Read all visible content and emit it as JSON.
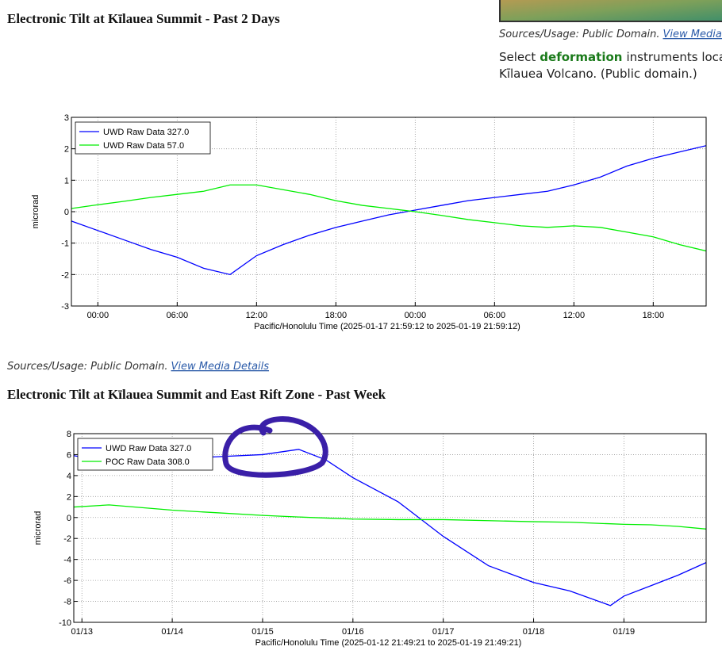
{
  "heading_1": "Electronic Tilt at Kīlauea Summit - Past 2 Days",
  "side_sources": "Sources/Usage: Public Domain.",
  "side_link": "View Media D",
  "side_text_1": "Select",
  "side_keyword": "deformation",
  "side_text_2": "instruments locate",
  "side_text_3": "Kīlauea Volcano. (Public domain.)",
  "chart_sources": "Sources/Usage: Public Domain.",
  "chart_link": "View Media Details",
  "heading_2": "Electronic Tilt at Kīlauea Summit and East Rift Zone - Past Week",
  "chart_data": [
    {
      "type": "line",
      "ylabel": "microrad",
      "xlabel": "Pacific/Honolulu Time (2025-01-17 21:59:12 to 2025-01-19 21:59:12)",
      "x": [
        -2,
        0,
        2,
        4,
        6,
        8,
        10,
        12,
        14,
        16,
        18,
        20,
        22,
        24,
        26,
        28,
        30,
        32,
        34,
        36,
        38,
        40,
        42,
        44,
        46
      ],
      "series": [
        {
          "name": "UWD Raw Data 327.0",
          "color": "#0000ff",
          "values": [
            -0.3,
            -0.6,
            -0.9,
            -1.2,
            -1.45,
            -1.8,
            -2.0,
            -1.4,
            -1.05,
            -0.75,
            -0.5,
            -0.3,
            -0.1,
            0.05,
            0.2,
            0.35,
            0.45,
            0.55,
            0.65,
            0.85,
            1.1,
            1.45,
            1.7,
            1.9,
            2.1
          ]
        },
        {
          "name": "UWD Raw Data 57.0",
          "color": "#00ee00",
          "values": [
            0.1,
            0.22,
            0.33,
            0.45,
            0.55,
            0.65,
            0.85,
            0.85,
            0.7,
            0.55,
            0.35,
            0.2,
            0.1,
            0,
            -0.12,
            -0.25,
            -0.35,
            -0.45,
            -0.5,
            -0.45,
            -0.5,
            -0.65,
            -0.8,
            -1.05,
            -1.25
          ]
        }
      ],
      "xlim": [
        -2,
        46
      ],
      "ylim": [
        -3,
        3
      ],
      "xticks": [
        {
          "value": 0,
          "label": "00:00"
        },
        {
          "value": 6,
          "label": "06:00"
        },
        {
          "value": 12,
          "label": "12:00"
        },
        {
          "value": 18,
          "label": "18:00"
        },
        {
          "value": 24,
          "label": "00:00"
        },
        {
          "value": 30,
          "label": "06:00"
        },
        {
          "value": 36,
          "label": "12:00"
        },
        {
          "value": 42,
          "label": "18:00"
        }
      ],
      "yticks": [
        -3,
        -2,
        -1,
        0,
        1,
        2,
        3
      ],
      "grid": true,
      "legend": "upper left"
    },
    {
      "type": "line",
      "ylabel": "microrad",
      "xlabel": "Pacific/Honolulu Time (2025-01-12 21:49:21 to 2025-01-19 21:49:21)",
      "x": [
        -0.09,
        0.3,
        1,
        1.5,
        2,
        2.4,
        2.7,
        3,
        3.5,
        4,
        4.5,
        5,
        5.4,
        5.85,
        6,
        6.3,
        6.6,
        6.91
      ],
      "series": [
        {
          "name": "UWD Raw Data 327.0",
          "color": "#0000ff",
          "values": [
            5.9,
            5.3,
            5.6,
            5.8,
            6.0,
            6.5,
            5.5,
            3.8,
            1.5,
            -1.8,
            -4.6,
            -6.2,
            -7.0,
            -8.4,
            -7.5,
            -6.5,
            -5.5,
            -4.3
          ]
        },
        {
          "name": "POC Raw Data 308.0",
          "color": "#00ee00",
          "values": [
            1.0,
            1.2,
            0.7,
            0.45,
            0.2,
            0.05,
            -0.05,
            -0.15,
            -0.2,
            -0.2,
            -0.3,
            -0.4,
            -0.45,
            -0.6,
            -0.65,
            -0.7,
            -0.85,
            -1.1
          ]
        }
      ],
      "xlim": [
        -0.09,
        6.91
      ],
      "ylim": [
        -10,
        8
      ],
      "xticks": [
        {
          "value": 0,
          "label": "01/13"
        },
        {
          "value": 1,
          "label": "01/14"
        },
        {
          "value": 2,
          "label": "01/15"
        },
        {
          "value": 3,
          "label": "01/16"
        },
        {
          "value": 4,
          "label": "01/17"
        },
        {
          "value": 5,
          "label": "01/18"
        },
        {
          "value": 6,
          "label": "01/19"
        }
      ],
      "yticks": [
        -10,
        -8,
        -6,
        -4,
        -2,
        0,
        2,
        4,
        6,
        8
      ],
      "grid": true,
      "legend": "upper left"
    }
  ]
}
